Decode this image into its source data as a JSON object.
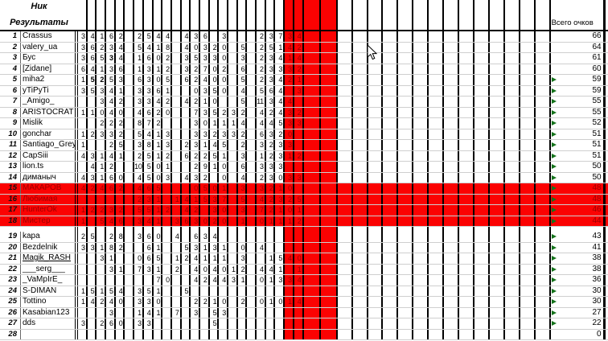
{
  "header": {
    "nick_label": "Ник",
    "results_label": "Результаты",
    "total_label": "Всего очков"
  },
  "colors": {
    "band_red": "#fb0202",
    "cell_text_dark_red": "#9b0000",
    "grid_line": "#000000",
    "row_line": "#cfcfcf",
    "flag_green": "#15731c"
  },
  "rows": [
    {
      "num": "1",
      "name": "Crassus",
      "total": "66",
      "red_row": false,
      "flag": false,
      "underline": false,
      "bold": [],
      "cells": [
        "3",
        "4",
        "1",
        "6",
        "2",
        "",
        "2",
        "5",
        "4",
        "4",
        "",
        "4",
        "3",
        "6",
        "",
        "3",
        "",
        "",
        "",
        "2",
        "3",
        "7",
        "3",
        "4"
      ]
    },
    {
      "num": "2",
      "name": "valery_ua",
      "total": "64",
      "red_row": false,
      "flag": false,
      "underline": false,
      "bold": [],
      "cells": [
        "3",
        "6",
        "2",
        "3",
        "4",
        "",
        "5",
        "4",
        "1",
        "8",
        "",
        "4",
        "0",
        "3",
        "2",
        "0",
        "",
        "5",
        "",
        "2",
        "5",
        "1",
        "4",
        "2"
      ]
    },
    {
      "num": "3",
      "name": "Бус",
      "total": "61",
      "red_row": false,
      "flag": false,
      "underline": false,
      "bold": [
        3
      ],
      "cells": [
        "3",
        "6",
        "5",
        "3",
        "4",
        "",
        "1",
        "6",
        "0",
        "2",
        "",
        "3",
        "5",
        "3",
        "3",
        "0",
        "",
        "3",
        "",
        "2",
        "3",
        "4",
        "1",
        "4"
      ]
    },
    {
      "num": "4",
      "name": "[Zidane]",
      "total": "60",
      "red_row": false,
      "flag": false,
      "underline": false,
      "bold": [],
      "cells": [
        "6",
        "4",
        "1",
        "3",
        "6",
        "",
        "1",
        "3",
        "1",
        "2",
        "",
        "3",
        "2",
        "7",
        "0",
        "2",
        "",
        "6",
        "",
        "2",
        "3",
        "3",
        "3",
        "2"
      ]
    },
    {
      "num": "5",
      "name": "miha2",
      "total": "59",
      "red_row": false,
      "flag": true,
      "underline": false,
      "bold": [
        1,
        2
      ],
      "cells": [
        "1",
        "5",
        "2",
        "5",
        "3",
        "",
        "6",
        "3",
        "0",
        "5",
        "",
        "6",
        "2",
        "4",
        "0",
        "0",
        "",
        "5",
        "",
        "2",
        "3",
        "4",
        "2",
        "1"
      ]
    },
    {
      "num": "6",
      "name": "yTiPyTi",
      "total": "59",
      "red_row": false,
      "flag": true,
      "underline": false,
      "bold": [],
      "cells": [
        "3",
        "5",
        "3",
        "4",
        "1",
        "",
        "3",
        "3",
        "6",
        "1",
        "",
        "",
        "0",
        "3",
        "5",
        "0",
        "",
        "4",
        "",
        "5",
        "6",
        "4",
        "",
        "3"
      ]
    },
    {
      "num": "7",
      "name": "_Amigo_",
      "total": "55",
      "red_row": false,
      "flag": true,
      "underline": false,
      "bold": [],
      "cells": [
        "",
        "",
        "3",
        "4",
        "2",
        "",
        "3",
        "3",
        "4",
        "2",
        "",
        "4",
        "2",
        "1",
        "0",
        "",
        "",
        "5",
        "",
        "11",
        "3",
        "4",
        "4",
        ""
      ]
    },
    {
      "num": "8",
      "name": "ARISTOCRAT",
      "total": "55",
      "red_row": false,
      "flag": true,
      "underline": false,
      "bold": [],
      "cells": [
        "1",
        "1",
        "0",
        "4",
        "0",
        "",
        "4",
        "6",
        "2",
        "0",
        "",
        "",
        "7",
        "3",
        "5",
        "2",
        "3",
        "2",
        "",
        "4",
        "2",
        "4",
        "3",
        "2"
      ]
    },
    {
      "num": "9",
      "name": "Mislik",
      "total": "52",
      "red_row": false,
      "flag": true,
      "underline": false,
      "bold": [],
      "cells": [
        "",
        "",
        "2",
        "2",
        "2",
        "",
        "8",
        "7",
        "2",
        "",
        "",
        "",
        "3",
        "0",
        "1",
        "1",
        "1",
        "4",
        "",
        "4",
        "4",
        "5",
        "3",
        "3"
      ]
    },
    {
      "num": "10",
      "name": "gonchar",
      "total": "51",
      "red_row": false,
      "flag": true,
      "underline": false,
      "bold": [],
      "cells": [
        "1",
        "2",
        "3",
        "3",
        "2",
        "",
        "5",
        "4",
        "1",
        "3",
        "",
        "",
        "3",
        "3",
        "2",
        "3",
        "3",
        "2",
        "",
        "6",
        "3",
        "2",
        "0",
        ""
      ]
    },
    {
      "num": "11",
      "name": "Santiago_Grey",
      "total": "51",
      "red_row": false,
      "flag": true,
      "underline": false,
      "bold": [],
      "cells": [
        "1",
        "",
        "",
        "2",
        "5",
        "",
        "3",
        "8",
        "1",
        "3",
        "",
        "2",
        "3",
        "1",
        "4",
        "5",
        "",
        "2",
        "",
        "3",
        "2",
        "3",
        "3",
        ""
      ]
    },
    {
      "num": "12",
      "name": "CapSiii",
      "total": "51",
      "red_row": false,
      "flag": true,
      "underline": false,
      "bold": [],
      "cells": [
        "4",
        "3",
        "1",
        "4",
        "1",
        "",
        "2",
        "5",
        "1",
        "2",
        "",
        "6",
        "2",
        "2",
        "5",
        "1",
        "",
        "3",
        "",
        "1",
        "2",
        "3",
        "1",
        "2"
      ]
    },
    {
      "num": "13",
      "name": "lion.ts",
      "total": "50",
      "red_row": false,
      "flag": true,
      "underline": false,
      "bold": [],
      "cells": [
        "",
        "4",
        "1",
        "2",
        "",
        "",
        "10",
        "5",
        "0",
        "1",
        "",
        "",
        "2",
        "9",
        "1",
        "0",
        "",
        "6",
        "",
        "3",
        "3",
        "3",
        "",
        ""
      ]
    },
    {
      "num": "14",
      "name": "диманыч",
      "total": "50",
      "red_row": false,
      "flag": true,
      "underline": false,
      "bold": [],
      "cells": [
        "4",
        "3",
        "1",
        "6",
        "0",
        "",
        "4",
        "5",
        "0",
        "3",
        "",
        "4",
        "3",
        "2",
        "",
        "0",
        "",
        "4",
        "",
        "2",
        "3",
        "0",
        "3",
        "3"
      ]
    },
    {
      "num": "15",
      "name": "МАКАРОВ",
      "total": "48",
      "red_row": true,
      "flag": true,
      "underline": false,
      "bold": [],
      "cells": [
        "4",
        "2",
        "4",
        "6",
        "2",
        "",
        "4",
        "6",
        "5",
        "",
        "",
        "",
        "0",
        "5",
        "0",
        "1",
        "",
        "3",
        "",
        "3",
        "2",
        "1",
        "0",
        ""
      ]
    },
    {
      "num": "16",
      "name": "Любимая",
      "total": "48",
      "red_row": true,
      "flag": true,
      "underline": false,
      "bold": [],
      "cells": [
        "",
        "",
        "",
        "",
        "",
        "",
        "2",
        "3",
        "1",
        "",
        "1",
        "4",
        "1",
        "5",
        "3",
        "7",
        "",
        "5",
        "",
        "4",
        "2",
        "3",
        "2",
        "5"
      ]
    },
    {
      "num": "17",
      "name": "HunterOk",
      "total": "46",
      "red_row": true,
      "flag": true,
      "underline": false,
      "bold": [],
      "cells": [
        "1",
        "2",
        "2",
        "3",
        "2",
        "",
        "5",
        "5",
        "1",
        "2",
        "",
        "4",
        "2",
        "",
        "3",
        "0",
        "",
        "3",
        "",
        "7",
        "2",
        "1",
        "0",
        "1"
      ]
    },
    {
      "num": "18",
      "name": "Мистер",
      "total": "44",
      "red_row": true,
      "flag": true,
      "underline": false,
      "bold": [],
      "cells": [
        "1",
        "",
        "5",
        "4",
        "6",
        "",
        "3",
        "4",
        "1",
        "",
        "3",
        "6",
        "3",
        "0",
        "2",
        "0",
        "",
        "1",
        "",
        "0",
        "1",
        "1",
        "1",
        "2"
      ]
    },
    {
      "num": "19",
      "name": "kapa",
      "total": "43",
      "red_row": false,
      "flag": true,
      "underline": false,
      "bold": [],
      "cells": [
        "2",
        "5",
        "",
        "2",
        "8",
        "",
        "3",
        "6",
        "0",
        "",
        "4",
        "",
        "6",
        "3",
        "4",
        "",
        "",
        "",
        "",
        "",
        "",
        "",
        "",
        ""
      ]
    },
    {
      "num": "20",
      "name": "Bezdelnik",
      "total": "41",
      "red_row": false,
      "flag": true,
      "underline": false,
      "bold": [],
      "cells": [
        "3",
        "3",
        "1",
        "8",
        "2",
        "",
        "",
        "6",
        "1",
        "",
        "",
        "5",
        "3",
        "1",
        "3",
        "1",
        "",
        "0",
        "",
        "4",
        "",
        "",
        "",
        ""
      ]
    },
    {
      "num": "21",
      "name": "Magik_RASH",
      "total": "38",
      "red_row": false,
      "flag": true,
      "underline": true,
      "bold": [],
      "cells": [
        "",
        "",
        "3",
        "1",
        "",
        "",
        "0",
        "6",
        "5",
        "",
        "1",
        "2",
        "4",
        "1",
        "1",
        "1",
        "",
        "3",
        "",
        "",
        "1",
        "5",
        "4",
        "0"
      ]
    },
    {
      "num": "22",
      "name": "___serg___",
      "total": "38",
      "red_row": false,
      "flag": true,
      "underline": false,
      "bold": [],
      "cells": [
        "",
        "",
        "",
        "3",
        "1",
        "",
        "7",
        "3",
        "1",
        "",
        "2",
        "",
        "4",
        "0",
        "4",
        "0",
        "1",
        "2",
        "",
        "4",
        "4",
        "1",
        "",
        "1"
      ]
    },
    {
      "num": "23",
      "name": "_VaMpIrE_",
      "total": "36",
      "red_row": false,
      "flag": true,
      "underline": false,
      "bold": [],
      "cells": [
        "",
        "",
        "",
        "",
        "",
        "",
        "",
        "",
        "7",
        "0",
        "",
        "",
        "4",
        "2",
        "4",
        "4",
        "3",
        "1",
        "",
        "0",
        "1",
        "3",
        "3",
        "4"
      ]
    },
    {
      "num": "24",
      "name": "S-DIMAN",
      "total": "30",
      "red_row": false,
      "flag": true,
      "underline": false,
      "bold": [],
      "cells": [
        "1",
        "5",
        "1",
        "5",
        "4",
        "",
        "3",
        "5",
        "1",
        "",
        "",
        "5",
        "",
        "",
        "",
        "",
        "",
        "",
        "",
        "",
        "",
        "",
        "",
        ""
      ]
    },
    {
      "num": "25",
      "name": "Tottino",
      "total": "30",
      "red_row": false,
      "flag": true,
      "underline": false,
      "bold": [],
      "cells": [
        "1",
        "4",
        "2",
        "4",
        "0",
        "",
        "3",
        "3",
        "0",
        "",
        "",
        "",
        "2",
        "2",
        "1",
        "0",
        "",
        "2",
        "",
        "0",
        "1",
        "0",
        "1",
        "4"
      ]
    },
    {
      "num": "26",
      "name": "Kasabian123",
      "total": "27",
      "red_row": false,
      "flag": true,
      "underline": false,
      "bold": [],
      "cells": [
        "",
        "",
        "",
        "3",
        "",
        "",
        "1",
        "4",
        "1",
        "",
        "7",
        "",
        "3",
        "",
        "5",
        "3",
        "",
        "",
        "",
        "",
        "",
        "",
        "",
        ""
      ]
    },
    {
      "num": "27",
      "name": "dds",
      "total": "22",
      "red_row": false,
      "flag": true,
      "underline": false,
      "bold": [],
      "cells": [
        "3",
        "",
        "2",
        "6",
        "0",
        "",
        "3",
        "3",
        "",
        "",
        "",
        "",
        "",
        "",
        "5",
        "",
        "",
        "",
        "",
        "",
        "",
        "",
        "",
        ""
      ]
    },
    {
      "num": "28",
      "name": "",
      "total": "0",
      "red_row": false,
      "flag": false,
      "underline": false,
      "bold": [],
      "cells": [
        "",
        "",
        "",
        "",
        "",
        "",
        "",
        "",
        "",
        "",
        "",
        "",
        "",
        "",
        "",
        "",
        "",
        "",
        "",
        "",
        "",
        "",
        "",
        ""
      ]
    }
  ],
  "gap_after_row": 18,
  "red_band": {
    "value_col_start": 22,
    "value_col_count": 2,
    "empty_col_count": 2
  }
}
